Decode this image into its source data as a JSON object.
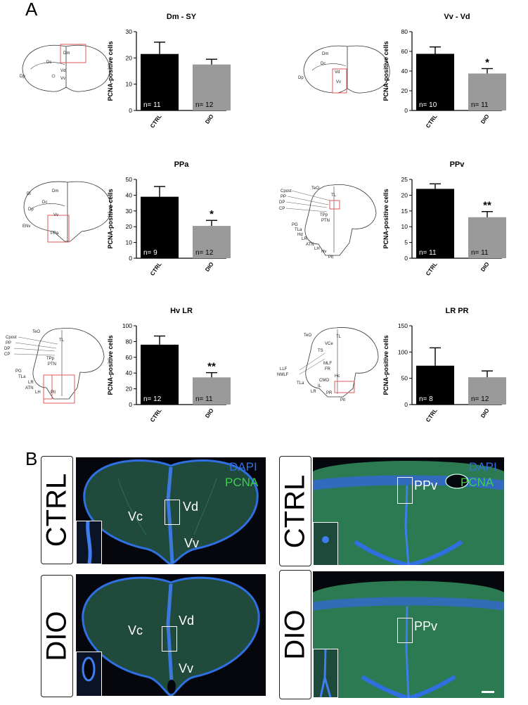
{
  "panel_a_label": "A",
  "panel_b_label": "B",
  "ylabel": "PCNA-positive cells",
  "chart_data": [
    {
      "type": "bar",
      "title": "Dm - SY",
      "categories": [
        "CTRL",
        "DIO"
      ],
      "values": [
        21.5,
        17.5
      ],
      "errors": [
        4.5,
        2.0
      ],
      "n_labels": [
        "n= 11",
        "n= 12"
      ],
      "ylim": [
        0,
        30
      ],
      "yticks": [
        "0",
        "10",
        "20",
        "30"
      ],
      "significance": "",
      "colors": [
        "#000000",
        "#9a9a9a"
      ]
    },
    {
      "type": "bar",
      "title": "Vv - Vd",
      "categories": [
        "CTRL",
        "DIO"
      ],
      "values": [
        57.5,
        37.5
      ],
      "errors": [
        7.0,
        5.0
      ],
      "n_labels": [
        "n= 10",
        "n= 11"
      ],
      "ylim": [
        0,
        80
      ],
      "yticks": [
        "0",
        "20",
        "40",
        "60",
        "80"
      ],
      "significance": "*",
      "colors": [
        "#000000",
        "#9a9a9a"
      ]
    },
    {
      "type": "bar",
      "title": "PPa",
      "categories": [
        "CTRL",
        "DIO"
      ],
      "values": [
        39,
        20.5
      ],
      "errors": [
        6.5,
        3.5
      ],
      "n_labels": [
        "n= 9",
        "n= 12"
      ],
      "ylim": [
        0,
        50
      ],
      "yticks": [
        "0",
        "10",
        "20",
        "30",
        "40",
        "50"
      ],
      "significance": "*",
      "colors": [
        "#000000",
        "#9a9a9a"
      ]
    },
    {
      "type": "bar",
      "title": "PPv",
      "categories": [
        "CTRL",
        "DIO"
      ],
      "values": [
        22,
        13
      ],
      "errors": [
        1.6,
        1.8
      ],
      "n_labels": [
        "n= 11",
        "n= 11"
      ],
      "ylim": [
        0,
        25
      ],
      "yticks": [
        "0",
        "5",
        "10",
        "15",
        "20",
        "25"
      ],
      "significance": "**",
      "colors": [
        "#000000",
        "#9a9a9a"
      ]
    },
    {
      "type": "bar",
      "title": "Hv LR",
      "categories": [
        "CTRL",
        "DIO"
      ],
      "values": [
        76,
        34.5
      ],
      "errors": [
        11,
        6
      ],
      "n_labels": [
        "n= 12",
        "n= 11"
      ],
      "ylim": [
        0,
        100
      ],
      "yticks": [
        "0",
        "20",
        "40",
        "60",
        "80",
        "100"
      ],
      "significance": "**",
      "colors": [
        "#000000",
        "#9a9a9a"
      ]
    },
    {
      "type": "bar",
      "title": "LR PR",
      "categories": [
        "CTRL",
        "DIO"
      ],
      "values": [
        74,
        52
      ],
      "errors": [
        34,
        12
      ],
      "n_labels": [
        "n= 8",
        "n= 12"
      ],
      "ylim": [
        0,
        150
      ],
      "yticks": [
        "0",
        "50",
        "100",
        "150"
      ],
      "significance": "",
      "colors": [
        "#000000",
        "#9a9a9a"
      ]
    }
  ],
  "schematics": [
    {
      "labels": [
        "Dm",
        "Dc",
        "Vd",
        "Vv",
        "Dp"
      ]
    },
    {
      "labels": [
        "Dm",
        "Dc",
        "Vd",
        "Vv",
        "Dp"
      ]
    },
    {
      "labels": [
        "Dl",
        "Dm",
        "Dc",
        "Dp",
        "Vv",
        "PPa",
        "ENv"
      ]
    },
    {
      "labels": [
        "TeO",
        "Cpost",
        "PP",
        "DP",
        "CP",
        "TL",
        "TPp",
        "PTN",
        "PG",
        "TLa",
        "Hd",
        "LR",
        "ATN",
        "LH",
        "Hv",
        "Pit"
      ]
    },
    {
      "labels": [
        "TeO",
        "Cpost",
        "PP",
        "DP",
        "CP",
        "TL",
        "TPp",
        "PTN",
        "PG",
        "TLa",
        "LR",
        "ATN",
        "LH",
        "Pit"
      ]
    },
    {
      "labels": [
        "TeO",
        "VCe",
        "TL",
        "TS",
        "MLF",
        "LLF",
        "NMLF",
        "FR",
        "TLa",
        "CMO",
        "Hc",
        "IL",
        "LR",
        "PR",
        "Pit"
      ]
    }
  ],
  "micrographs": {
    "conditions": [
      "CTRL",
      "DIO"
    ],
    "stains": [
      "DAPI",
      "PCNA"
    ],
    "stain_colors": [
      "#2f6fe0",
      "#3fcf4a"
    ],
    "left_regions": [
      "Vc",
      "Vd",
      "Vv"
    ],
    "right_region": "PPv"
  }
}
